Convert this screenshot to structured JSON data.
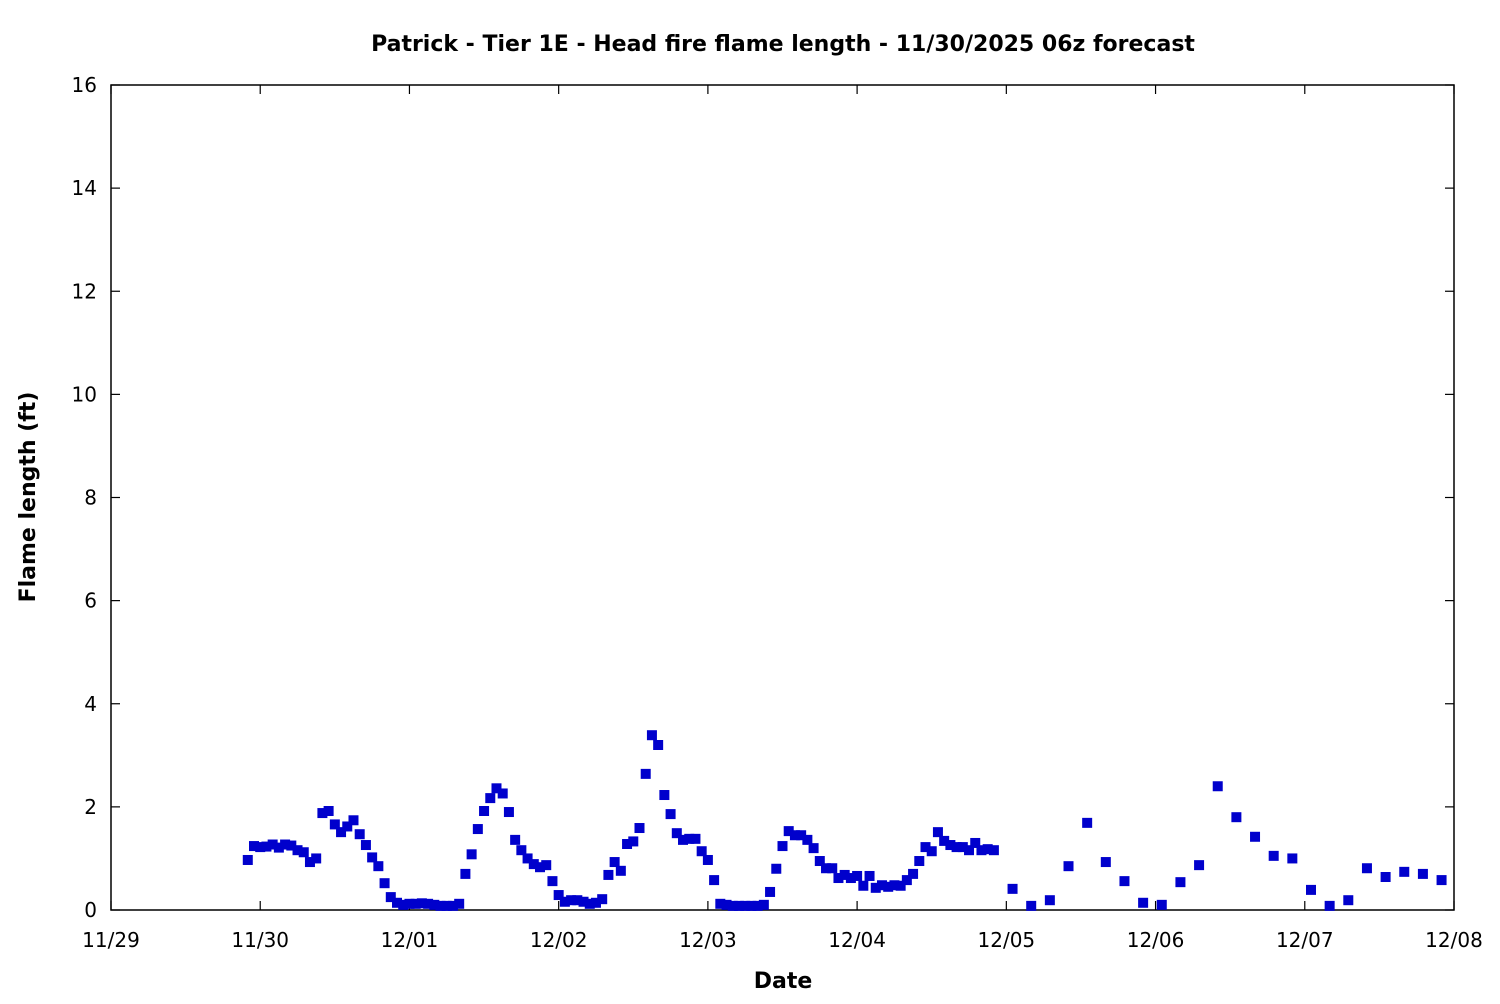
{
  "chart_data": {
    "type": "scatter",
    "title": "Patrick - Tier 1E - Head fire flame length - 11/30/2025 06z forecast",
    "xlabel": "Date",
    "ylabel": "Flame length (ft)",
    "xlim": [
      "2025-11-29T00",
      "2025-12-08T00"
    ],
    "ylim": [
      0,
      16
    ],
    "x_tick_labels": [
      "11/29",
      "11/30",
      "12/01",
      "12/02",
      "12/03",
      "12/04",
      "12/05",
      "12/06",
      "12/07",
      "12/08"
    ],
    "x_ticks": [
      "2025-11-29T00",
      "2025-11-30T00",
      "2025-12-01T00",
      "2025-12-02T00",
      "2025-12-03T00",
      "2025-12-04T00",
      "2025-12-05T00",
      "2025-12-06T00",
      "2025-12-07T00",
      "2025-12-08T00"
    ],
    "y_ticks": [
      0,
      2,
      4,
      6,
      8,
      10,
      12,
      14,
      16
    ],
    "grid": false,
    "marker": "square",
    "color": "#0000cc",
    "series": [
      {
        "x": [
          "2025-11-29T22",
          "2025-11-29T23",
          "2025-11-30T00",
          "2025-11-30T01",
          "2025-11-30T02",
          "2025-11-30T03",
          "2025-11-30T04",
          "2025-11-30T05",
          "2025-11-30T06",
          "2025-11-30T07",
          "2025-11-30T08",
          "2025-11-30T09",
          "2025-11-30T10",
          "2025-11-30T11",
          "2025-11-30T12",
          "2025-11-30T13",
          "2025-11-30T14",
          "2025-11-30T15",
          "2025-11-30T16",
          "2025-11-30T17",
          "2025-11-30T18",
          "2025-11-30T19",
          "2025-11-30T20",
          "2025-11-30T21",
          "2025-11-30T22",
          "2025-11-30T23",
          "2025-12-01T00",
          "2025-12-01T01",
          "2025-12-01T02",
          "2025-12-01T03",
          "2025-12-01T04",
          "2025-12-01T05",
          "2025-12-01T06",
          "2025-12-01T07",
          "2025-12-01T08",
          "2025-12-01T09",
          "2025-12-01T10",
          "2025-12-01T11",
          "2025-12-01T12",
          "2025-12-01T13",
          "2025-12-01T14",
          "2025-12-01T15",
          "2025-12-01T16",
          "2025-12-01T17",
          "2025-12-01T18",
          "2025-12-01T19",
          "2025-12-01T20",
          "2025-12-01T21",
          "2025-12-01T22",
          "2025-12-01T23",
          "2025-12-02T00",
          "2025-12-02T01",
          "2025-12-02T02",
          "2025-12-02T03",
          "2025-12-02T04",
          "2025-12-02T05",
          "2025-12-02T06",
          "2025-12-02T07",
          "2025-12-02T08",
          "2025-12-02T09",
          "2025-12-02T10",
          "2025-12-02T11",
          "2025-12-02T12",
          "2025-12-02T13",
          "2025-12-02T14",
          "2025-12-02T15",
          "2025-12-02T16",
          "2025-12-02T17",
          "2025-12-02T18",
          "2025-12-02T19",
          "2025-12-02T20",
          "2025-12-02T21",
          "2025-12-02T22",
          "2025-12-02T23",
          "2025-12-03T00",
          "2025-12-03T01",
          "2025-12-03T02",
          "2025-12-03T03",
          "2025-12-03T04",
          "2025-12-03T05",
          "2025-12-03T06",
          "2025-12-03T07",
          "2025-12-03T08",
          "2025-12-03T09",
          "2025-12-03T10",
          "2025-12-03T11",
          "2025-12-03T12",
          "2025-12-03T13",
          "2025-12-03T14",
          "2025-12-03T15",
          "2025-12-03T16",
          "2025-12-03T17",
          "2025-12-03T18",
          "2025-12-03T19",
          "2025-12-03T20",
          "2025-12-03T21",
          "2025-12-03T22",
          "2025-12-03T23",
          "2025-12-04T00",
          "2025-12-04T01",
          "2025-12-04T02",
          "2025-12-04T03",
          "2025-12-04T04",
          "2025-12-04T05",
          "2025-12-04T06",
          "2025-12-04T07",
          "2025-12-04T08",
          "2025-12-04T09",
          "2025-12-04T10",
          "2025-12-04T11",
          "2025-12-04T12",
          "2025-12-04T13",
          "2025-12-04T14",
          "2025-12-04T15",
          "2025-12-04T16",
          "2025-12-04T17",
          "2025-12-04T18",
          "2025-12-04T19",
          "2025-12-04T20",
          "2025-12-04T21",
          "2025-12-04T22",
          "2025-12-05T01",
          "2025-12-05T04",
          "2025-12-05T07",
          "2025-12-05T10",
          "2025-12-05T13",
          "2025-12-05T16",
          "2025-12-05T19",
          "2025-12-05T22",
          "2025-12-06T01",
          "2025-12-06T04",
          "2025-12-06T07",
          "2025-12-06T10",
          "2025-12-06T13",
          "2025-12-06T16",
          "2025-12-06T19",
          "2025-12-06T22",
          "2025-12-07T01",
          "2025-12-07T04",
          "2025-12-07T07",
          "2025-12-07T10",
          "2025-12-07T13",
          "2025-12-07T16",
          "2025-12-07T19",
          "2025-12-07T22"
        ],
        "values": [
          0.97,
          1.24,
          1.22,
          1.23,
          1.27,
          1.21,
          1.27,
          1.25,
          1.16,
          1.12,
          0.93,
          1.0,
          1.88,
          1.92,
          1.66,
          1.51,
          1.62,
          1.74,
          1.47,
          1.26,
          1.02,
          0.85,
          0.52,
          0.25,
          0.14,
          0.1,
          0.12,
          0.12,
          0.13,
          0.12,
          0.1,
          0.08,
          0.08,
          0.08,
          0.12,
          0.7,
          1.08,
          1.57,
          1.92,
          2.17,
          2.36,
          2.26,
          1.9,
          1.36,
          1.16,
          1.0,
          0.89,
          0.83,
          0.87,
          0.56,
          0.29,
          0.16,
          0.19,
          0.19,
          0.16,
          0.12,
          0.14,
          0.21,
          0.68,
          0.93,
          0.76,
          1.28,
          1.33,
          1.59,
          2.64,
          3.39,
          3.2,
          2.23,
          1.86,
          1.49,
          1.36,
          1.38,
          1.38,
          1.14,
          0.97,
          0.58,
          0.12,
          0.1,
          0.08,
          0.08,
          0.08,
          0.08,
          0.08,
          0.1,
          0.35,
          0.8,
          1.24,
          1.53,
          1.45,
          1.45,
          1.36,
          1.2,
          0.95,
          0.81,
          0.81,
          0.62,
          0.68,
          0.62,
          0.66,
          0.47,
          0.66,
          0.43,
          0.48,
          0.45,
          0.48,
          0.47,
          0.58,
          0.7,
          0.95,
          1.22,
          1.14,
          1.51,
          1.34,
          1.26,
          1.22,
          1.22,
          1.16,
          1.3,
          1.16,
          1.18,
          1.16,
          0.41,
          0.08,
          0.19,
          0.85,
          1.69,
          0.93,
          0.56,
          0.14,
          0.1,
          0.54,
          0.87,
          2.4,
          1.8,
          1.42,
          1.05,
          1.0,
          0.39,
          0.08,
          0.19,
          0.81,
          0.64,
          0.74,
          0.7,
          0.58
        ]
      }
    ]
  }
}
